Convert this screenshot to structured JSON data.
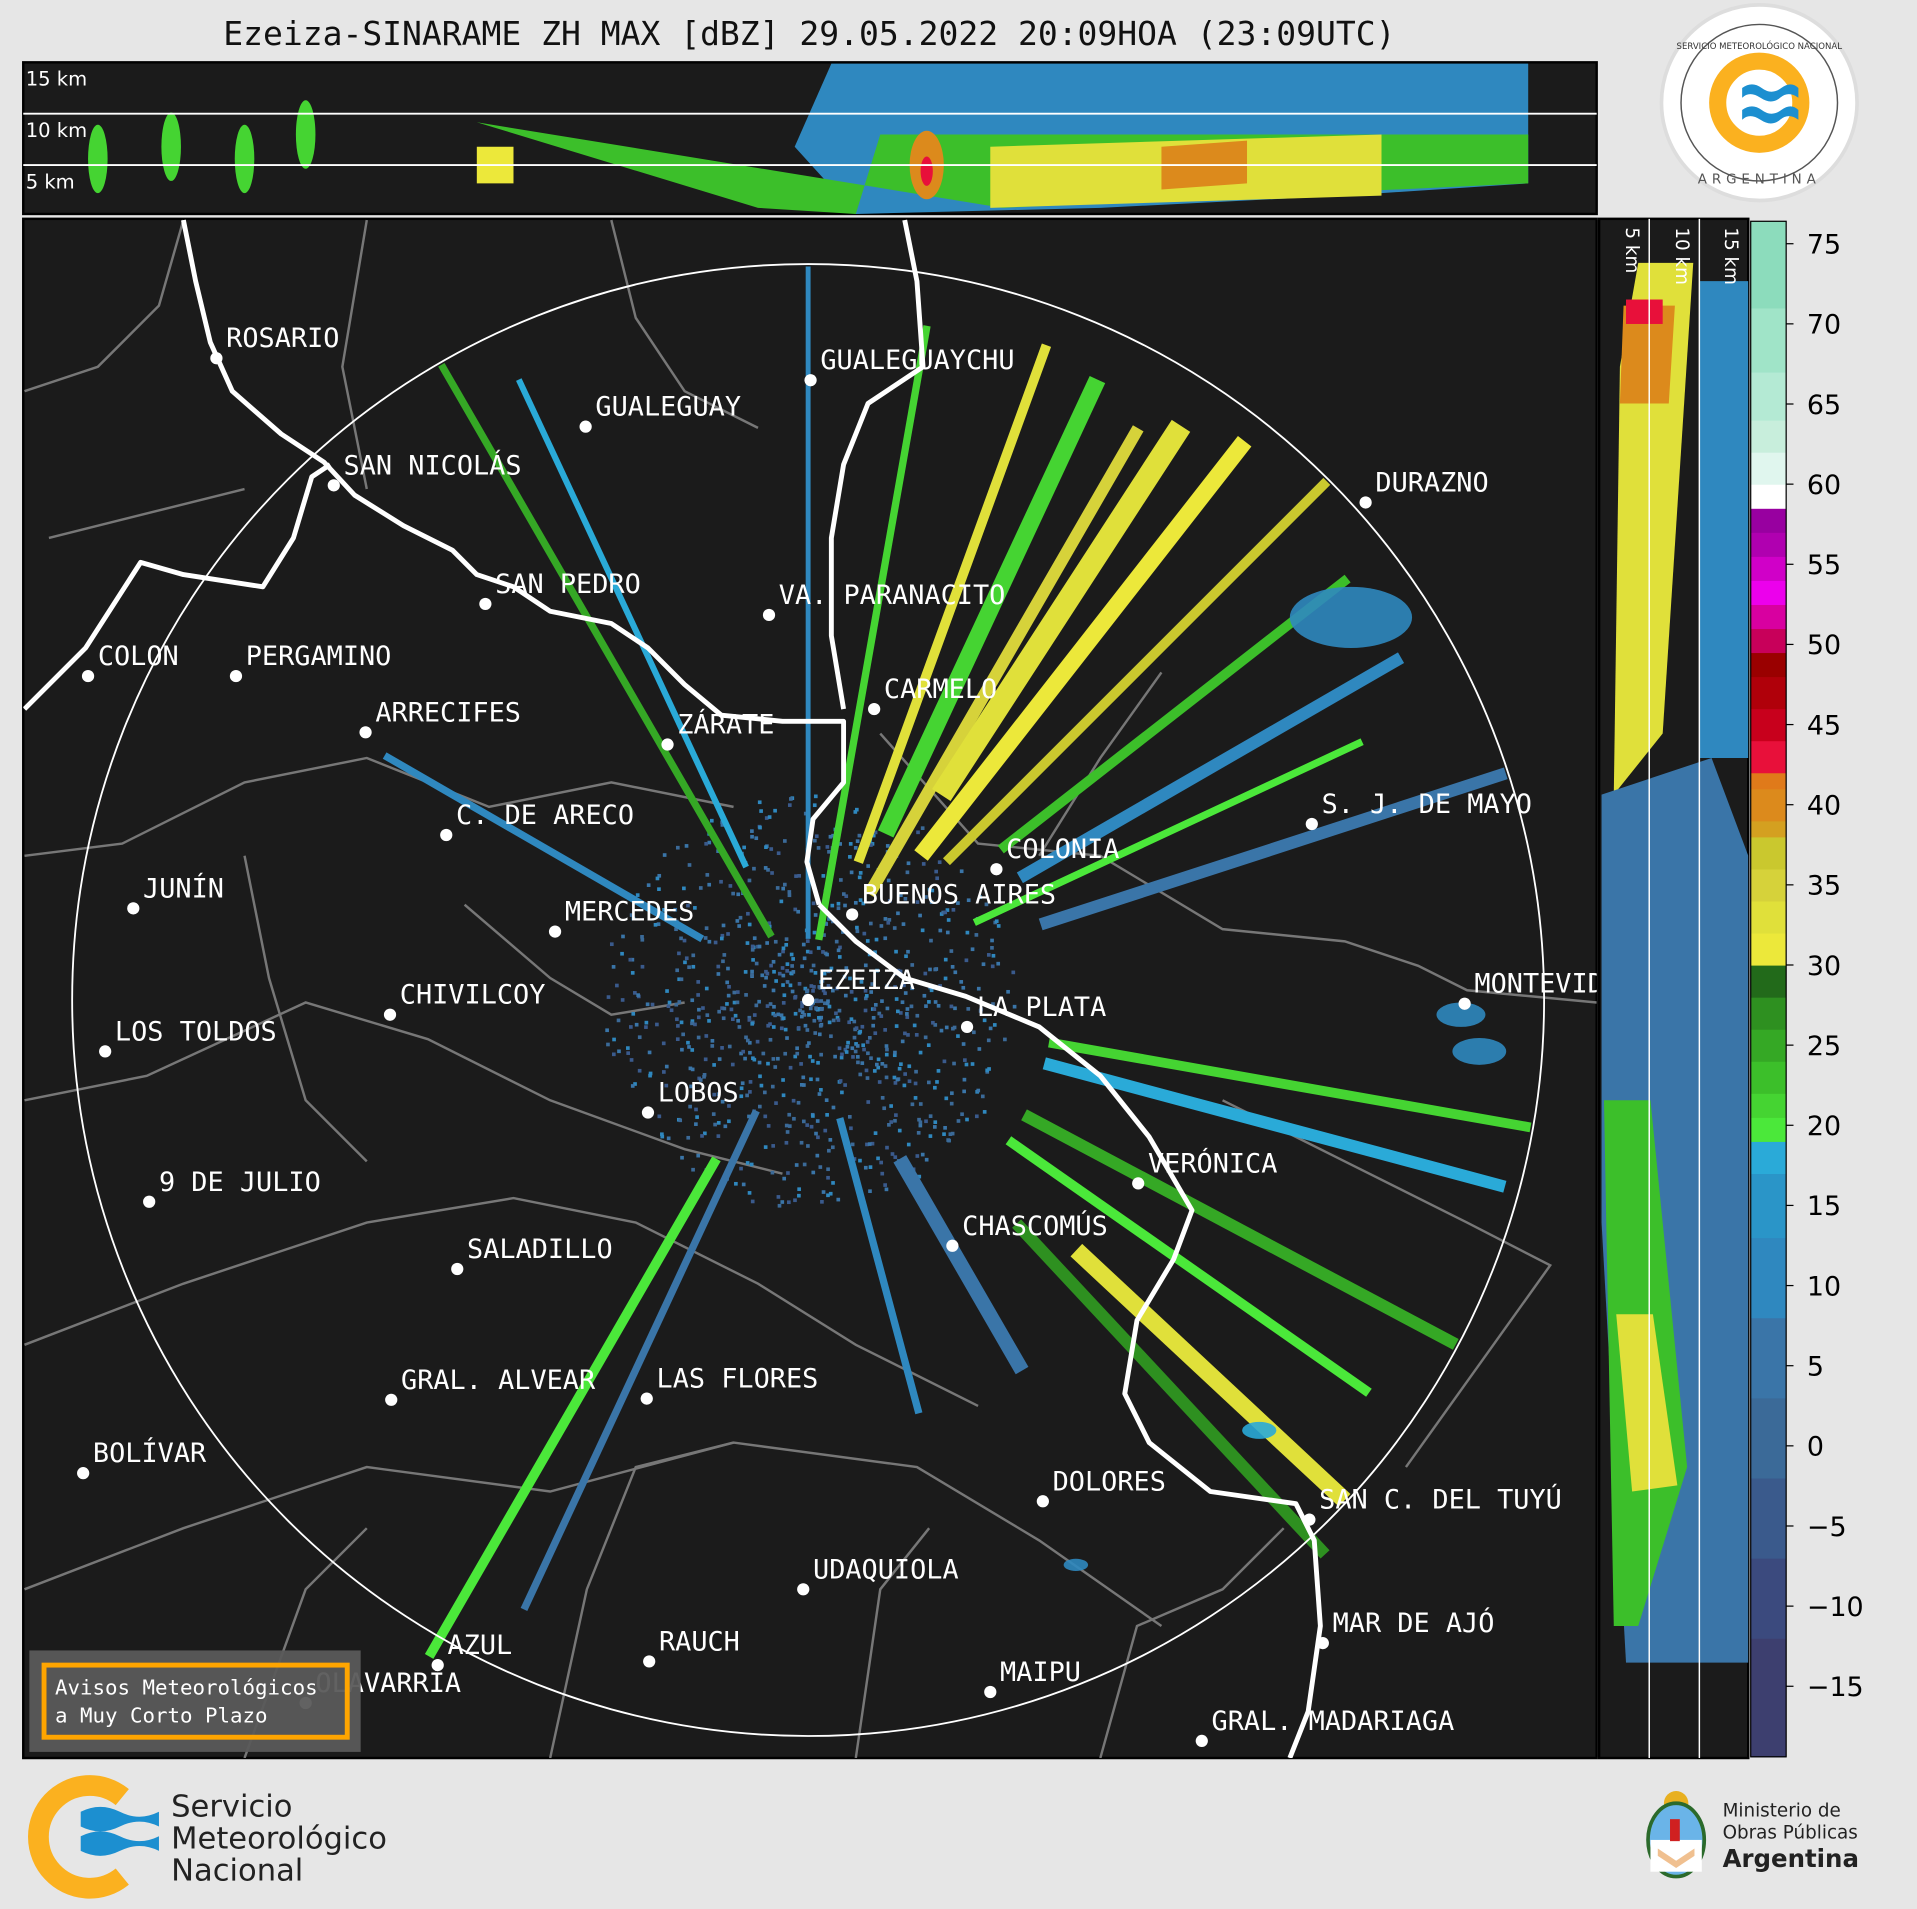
{
  "title": "Ezeiza-SINARAME ZH MAX [dBZ] 29.05.2022 20:09HOA (23:09UTC)",
  "top_panel": {
    "labels": [
      "15 km",
      "10 km",
      "5 km"
    ]
  },
  "side_panel": {
    "labels": [
      "5 km",
      "10 km",
      "15 km"
    ]
  },
  "radar": {
    "name": "EZEIZA"
  },
  "cities": [
    "ROSARIO",
    "GUALEGUAY",
    "GUALEGUAYCHU",
    "SAN NICOLÁS",
    "SAN PEDRO",
    "VA. PARANACITO",
    "DURAZNO",
    "COLON",
    "PERGAMINO",
    "CARMELO",
    "ARRECIFES",
    "ZÁRATE",
    "C. DE ARECO",
    "S. J. DE MAYO",
    "COLONIA",
    "JUNÍN",
    "BUENOS AIRES",
    "MERCEDES",
    "MONTEVIDEO",
    "EZEIZA",
    "CHIVILCOY",
    "LA PLATA",
    "LOS TOLDOS",
    "LOBOS",
    "VERÓNICA",
    "9 DE JULIO",
    "CHASCOMÚS",
    "SALADILLO",
    "GRAL. ALVEAR",
    "LAS FLORES",
    "BOLÍVAR",
    "DOLORES",
    "SAN C. DEL TUYÚ",
    "UDAQUIOLA",
    "MAR DE AJÓ",
    "AZUL",
    "RAUCH",
    "OLAVARRÍA",
    "MAIPU",
    "GRAL. MADARIAGA"
  ],
  "warning_box": {
    "line1": "Avisos Meteorológicos",
    "line2": "a Muy Corto Plazo",
    "border_color": "#ffa500"
  },
  "colorbar": {
    "unit": "dBZ",
    "range": [
      -19.4,
      76.4
    ],
    "ticks": [
      -15,
      -10,
      -5,
      0,
      5,
      10,
      15,
      20,
      25,
      30,
      35,
      40,
      45,
      50,
      55,
      60,
      65,
      70,
      75
    ],
    "tick_labels": [
      "−15",
      "−10",
      "−5",
      "0",
      "5",
      "10",
      "15",
      "20",
      "25",
      "30",
      "35",
      "40",
      "45",
      "50",
      "55",
      "60",
      "65",
      "70",
      "75"
    ],
    "bins": [
      [
        -19.4,
        -12,
        "#3d3f6f"
      ],
      [
        -12,
        -7,
        "#3b4a7e"
      ],
      [
        -7,
        -2,
        "#3a5a8c"
      ],
      [
        -2,
        3,
        "#3b6a98"
      ],
      [
        3,
        8,
        "#3a75a8"
      ],
      [
        8,
        13,
        "#2f88bf"
      ],
      [
        13,
        17,
        "#2a95c8"
      ],
      [
        17,
        19,
        "#2aaad8"
      ],
      [
        19,
        20.5,
        "#4be83a"
      ],
      [
        20.5,
        22,
        "#45d432"
      ],
      [
        22,
        24,
        "#3cbf2a"
      ],
      [
        24,
        26,
        "#35a825"
      ],
      [
        26,
        28,
        "#2e9020"
      ],
      [
        28,
        30,
        "#226a1a"
      ],
      [
        30,
        32,
        "#ece83a"
      ],
      [
        32,
        34,
        "#e0e03a"
      ],
      [
        34,
        36,
        "#d6d23a"
      ],
      [
        36,
        38,
        "#cac82e"
      ],
      [
        38,
        39,
        "#d4a020"
      ],
      [
        39,
        41,
        "#dc8a1c"
      ],
      [
        41,
        42,
        "#e07a1a"
      ],
      [
        42,
        44,
        "#e8103a"
      ],
      [
        44,
        46,
        "#c8001c"
      ],
      [
        46,
        48,
        "#b0000a"
      ],
      [
        48,
        49.5,
        "#9a0000"
      ],
      [
        49.5,
        51,
        "#c8005a"
      ],
      [
        51,
        52.5,
        "#d800a0"
      ],
      [
        52.5,
        54,
        "#ec00ec"
      ],
      [
        54,
        55.5,
        "#d000c8"
      ],
      [
        55.5,
        57,
        "#b000b0"
      ],
      [
        57,
        58.5,
        "#9800a0"
      ],
      [
        58.5,
        60,
        "#ffffff"
      ],
      [
        60,
        62,
        "#e0f6ee"
      ],
      [
        62,
        64,
        "#c8eedc"
      ],
      [
        64,
        67,
        "#b4ead4"
      ],
      [
        67,
        71,
        "#a0e4c8"
      ],
      [
        71,
        76.4,
        "#8cdcbc"
      ]
    ]
  },
  "seal": {
    "top_text": "SERVICIO METEOROLÓGICO NACIONAL",
    "bottom_text": "ARGENTINA"
  },
  "footer": {
    "smn": [
      "Servicio",
      "Meteorológico",
      "Nacional"
    ],
    "ministry": [
      "Ministerio de",
      "Obras Públicas",
      "Argentina"
    ]
  },
  "colors": {
    "background": "#e6e6e6",
    "map_bg": "#1b1b1b",
    "smn_orange": "#fbb11f",
    "smn_blue": "#1c8fd0"
  }
}
